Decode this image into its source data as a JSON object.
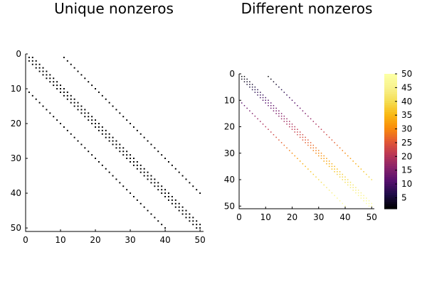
{
  "figure": {
    "left_title": "Unique nonzeros",
    "right_title": "Different nonzeros"
  },
  "chart_data": [
    {
      "type": "scatter",
      "title": "Unique nonzeros",
      "xlim": [
        0,
        51
      ],
      "ylim": [
        0,
        51
      ],
      "y_reversed": true,
      "xticks": [
        "0",
        "10",
        "20",
        "30",
        "40",
        "50"
      ],
      "yticks": [
        "0",
        "10",
        "20",
        "30",
        "40",
        "50"
      ],
      "marker_color": "#000000",
      "grid": false,
      "legend": "none",
      "series": [
        {
          "diagonal_offset": 0,
          "rows": [
            1,
            50
          ]
        },
        {
          "diagonal_offset": 1,
          "rows": [
            1,
            49
          ]
        },
        {
          "diagonal_offset": -1,
          "rows": [
            2,
            50
          ]
        },
        {
          "diagonal_offset": 10,
          "rows": [
            1,
            40
          ]
        },
        {
          "diagonal_offset": -10,
          "rows": [
            11,
            50
          ]
        }
      ]
    },
    {
      "type": "heatmap",
      "title": "Different nonzeros",
      "xlim": [
        0,
        51
      ],
      "ylim": [
        0,
        51
      ],
      "y_reversed": true,
      "xticks": [
        "0",
        "10",
        "20",
        "30",
        "40",
        "50"
      ],
      "yticks": [
        "0",
        "10",
        "20",
        "30",
        "40",
        "50"
      ],
      "value_rule": "value = row index",
      "grid": false,
      "series": [
        {
          "diagonal_offset": 0,
          "rows": [
            1,
            50
          ]
        },
        {
          "diagonal_offset": 1,
          "rows": [
            1,
            49
          ]
        },
        {
          "diagonal_offset": -1,
          "rows": [
            2,
            50
          ]
        },
        {
          "diagonal_offset": 10,
          "rows": [
            1,
            40
          ]
        },
        {
          "diagonal_offset": -10,
          "rows": [
            11,
            50
          ]
        }
      ],
      "colorbar": {
        "colormap": "inferno",
        "range": [
          1,
          50
        ],
        "ticks": [
          "5",
          "10",
          "15",
          "20",
          "25",
          "30",
          "35",
          "40",
          "45",
          "50"
        ]
      }
    }
  ]
}
